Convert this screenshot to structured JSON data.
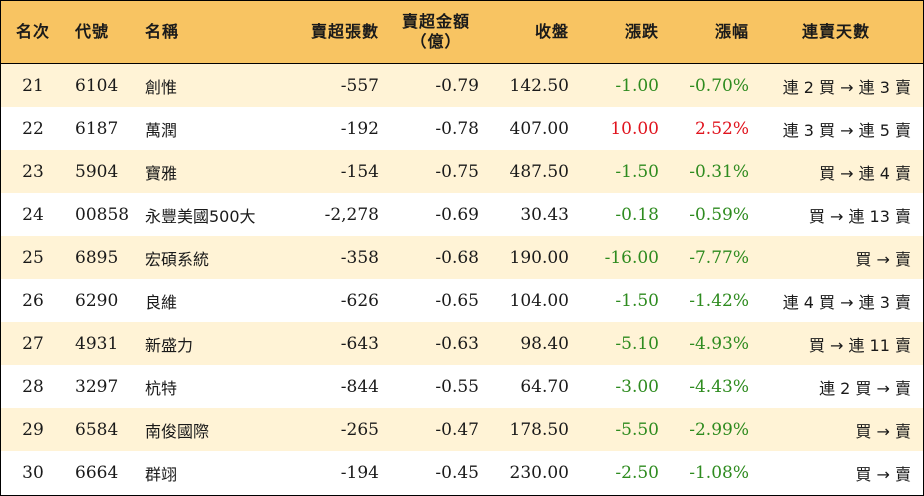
{
  "headers": {
    "rank": "名次",
    "code": "代號",
    "name": "名稱",
    "volume": "賣超張數",
    "amount_line1": "賣超金額",
    "amount_line2": "（億）",
    "close": "收盤",
    "change": "漲跌",
    "pct": "漲幅",
    "streak": "連賣天數"
  },
  "colors": {
    "header_bg": "#f8c462",
    "odd_row_bg": "#fff3d6",
    "down": "#2e8b1f",
    "up": "#e0141e"
  },
  "rows": [
    {
      "rank": "21",
      "code": "6104",
      "name": "創惟",
      "volume": "-557",
      "amount": "-0.79",
      "close": "142.50",
      "change": "-1.00",
      "pct": "-0.70%",
      "streak": "連 2 買 → 連 3 賣",
      "dir": "down"
    },
    {
      "rank": "22",
      "code": "6187",
      "name": "萬潤",
      "volume": "-192",
      "amount": "-0.78",
      "close": "407.00",
      "change": "10.00",
      "pct": "2.52%",
      "streak": "連 3 買 → 連 5 賣",
      "dir": "up"
    },
    {
      "rank": "23",
      "code": "5904",
      "name": "寶雅",
      "volume": "-154",
      "amount": "-0.75",
      "close": "487.50",
      "change": "-1.50",
      "pct": "-0.31%",
      "streak": "買 → 連 4 賣",
      "dir": "down"
    },
    {
      "rank": "24",
      "code": "00858",
      "name": "永豐美國500大",
      "volume": "-2,278",
      "amount": "-0.69",
      "close": "30.43",
      "change": "-0.18",
      "pct": "-0.59%",
      "streak": "買 → 連 13 賣",
      "dir": "down"
    },
    {
      "rank": "25",
      "code": "6895",
      "name": "宏碩系統",
      "volume": "-358",
      "amount": "-0.68",
      "close": "190.00",
      "change": "-16.00",
      "pct": "-7.77%",
      "streak": "買 → 賣",
      "dir": "down"
    },
    {
      "rank": "26",
      "code": "6290",
      "name": "良維",
      "volume": "-626",
      "amount": "-0.65",
      "close": "104.00",
      "change": "-1.50",
      "pct": "-1.42%",
      "streak": "連 4 買 → 連 3 賣",
      "dir": "down"
    },
    {
      "rank": "27",
      "code": "4931",
      "name": "新盛力",
      "volume": "-643",
      "amount": "-0.63",
      "close": "98.40",
      "change": "-5.10",
      "pct": "-4.93%",
      "streak": "買 → 連 11 賣",
      "dir": "down"
    },
    {
      "rank": "28",
      "code": "3297",
      "name": "杭特",
      "volume": "-844",
      "amount": "-0.55",
      "close": "64.70",
      "change": "-3.00",
      "pct": "-4.43%",
      "streak": "連 2 買 → 賣",
      "dir": "down"
    },
    {
      "rank": "29",
      "code": "6584",
      "name": "南俊國際",
      "volume": "-265",
      "amount": "-0.47",
      "close": "178.50",
      "change": "-5.50",
      "pct": "-2.99%",
      "streak": "買 → 賣",
      "dir": "down"
    },
    {
      "rank": "30",
      "code": "6664",
      "name": "群翊",
      "volume": "-194",
      "amount": "-0.45",
      "close": "230.00",
      "change": "-2.50",
      "pct": "-1.08%",
      "streak": "買 → 賣",
      "dir": "down"
    }
  ]
}
